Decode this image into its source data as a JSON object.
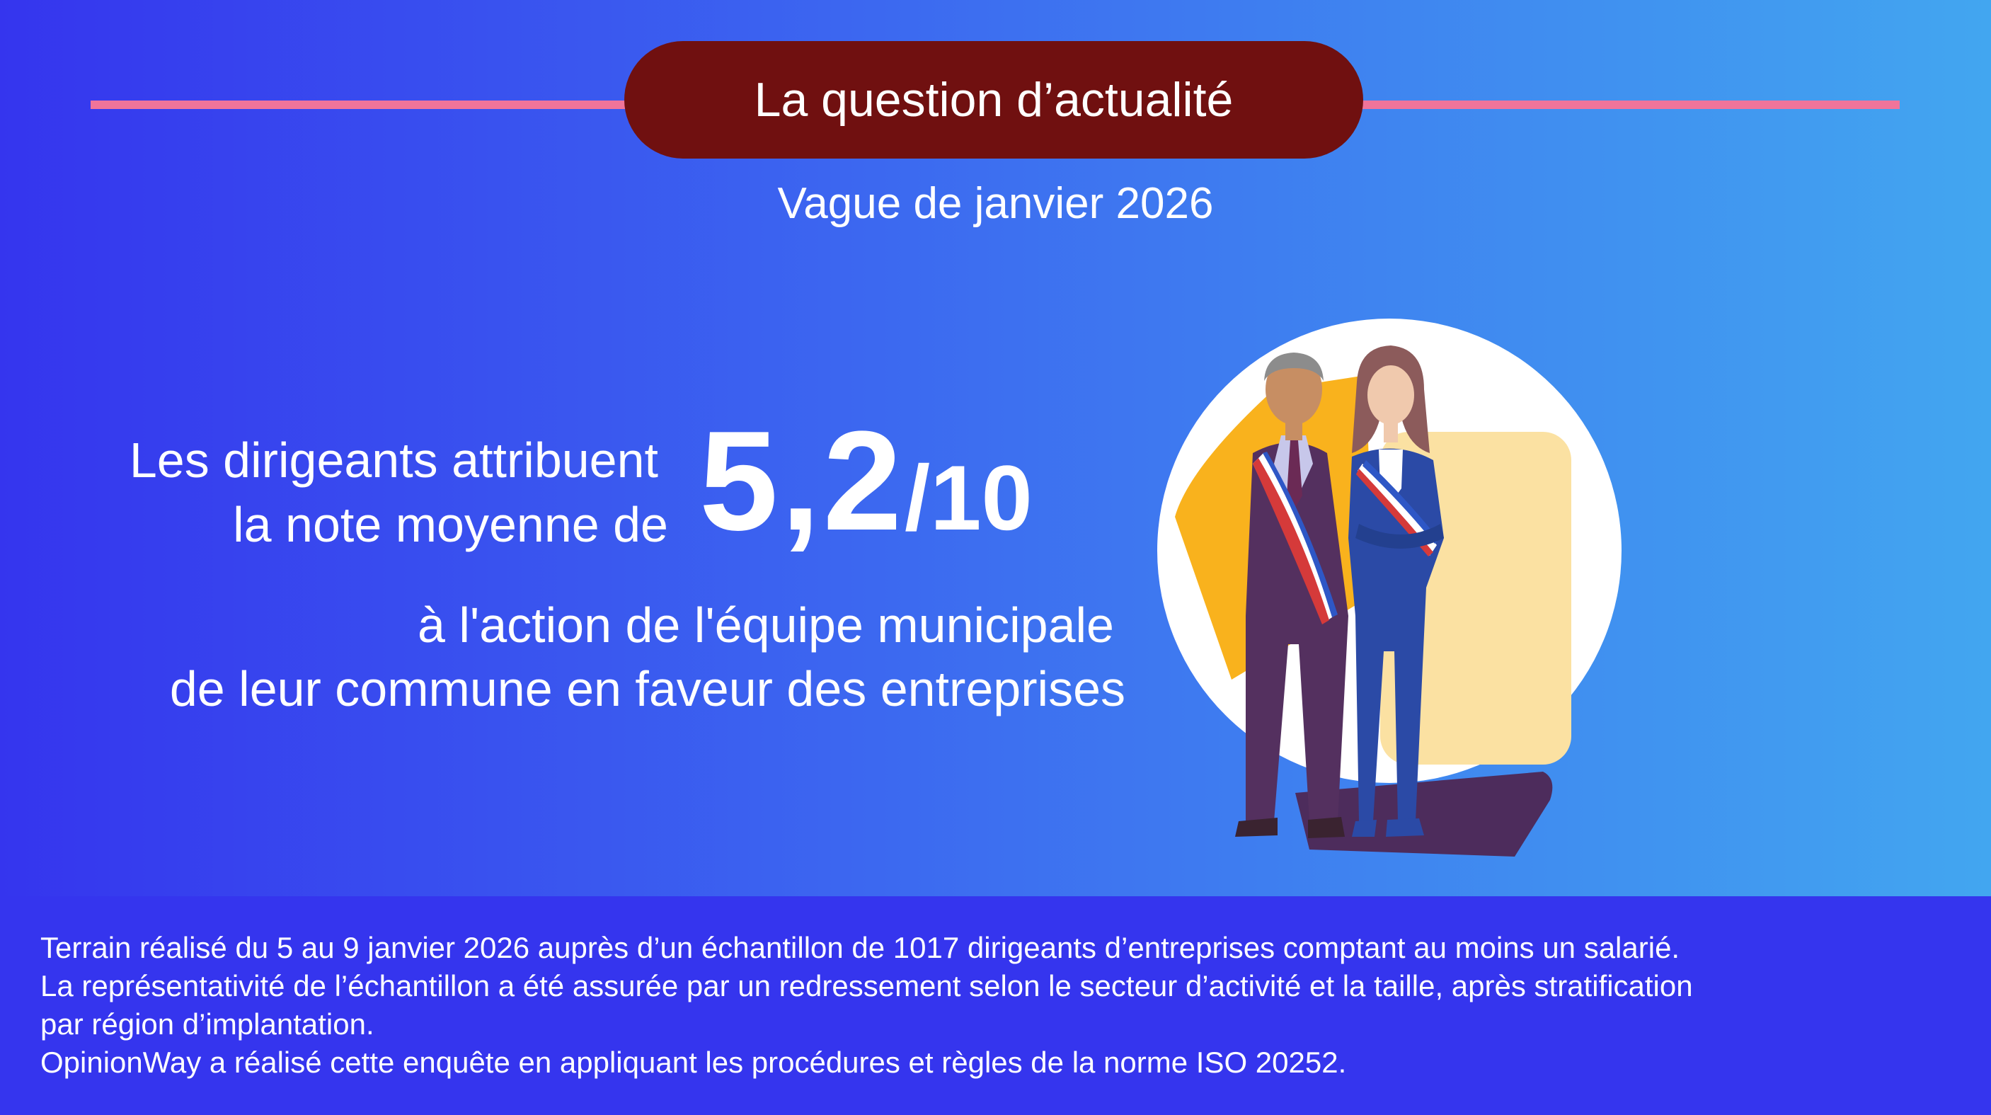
{
  "header": {
    "title": "La question d’actualité",
    "subtitle": "Vague de janvier 2026"
  },
  "headline": {
    "line1": "Les dirigeants attribuent",
    "line2": "la note moyenne de",
    "score": "5,2",
    "score_denominator": "/10",
    "line3": "à l'action de l'équipe municipale",
    "line4": "de leur commune en faveur des entreprises"
  },
  "colors": {
    "header_pill": "#701010",
    "accent_line": "#f0749a",
    "background_start": "#3535ee",
    "background_end": "#42a6f0",
    "illustration_yellow": "#f9b21d"
  },
  "illustration": {
    "icon": "mayors-with-sashes-illustration"
  },
  "footer": {
    "lines": [
      "Terrain réalisé du 5 au 9 janvier 2026 auprès d’un échantillon de 1017 dirigeants d’entreprises comptant au moins un salarié.",
      "La représentativité de l’échantillon a été assurée par un redressement selon le secteur d’activité et la taille, après stratification",
      "par région d’implantation.",
      "OpinionWay a réalisé cette enquête en appliquant les procédures et règles de la norme ISO 20252."
    ]
  }
}
